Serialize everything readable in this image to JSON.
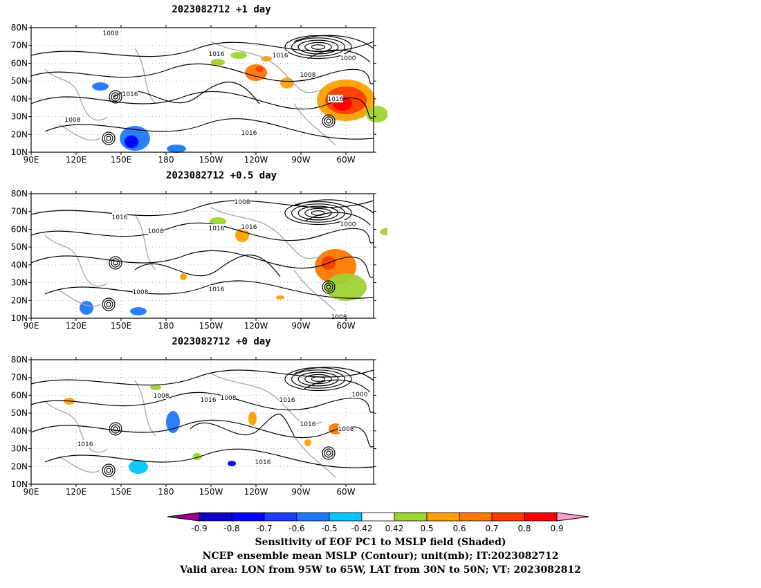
{
  "panels": [
    {
      "title": "2023082712  +1 day",
      "contour_labels": [
        "1008",
        "1016",
        "1008",
        "1016",
        "1000",
        "1016",
        "1016",
        "1008",
        "1016"
      ]
    },
    {
      "title": "2023082712  +0.5 day",
      "contour_labels": [
        "1008",
        "1016",
        "1008",
        "1016",
        "1016",
        "1000",
        "1016",
        "1016",
        "1008",
        "1008"
      ]
    },
    {
      "title": "2023082712  +0 day",
      "contour_labels": [
        "1008",
        "1016",
        "1008",
        "1016",
        "1016",
        "1000",
        "1016",
        "1016",
        "1008"
      ]
    }
  ],
  "axes": {
    "lat_ticks": [
      "80N",
      "70N",
      "60N",
      "50N",
      "40N",
      "30N",
      "20N",
      "10N"
    ],
    "lon_ticks": [
      "90E",
      "120E",
      "150E",
      "180",
      "150W",
      "120W",
      "90W",
      "60W"
    ]
  },
  "colorbar": {
    "labels": [
      "-0.9",
      "-0.8",
      "-0.7",
      "-0.6",
      "-0.5",
      "-0.42",
      "0.42",
      "0.5",
      "0.6",
      "0.7",
      "0.8",
      "0.9"
    ],
    "colors": [
      "#a0008c",
      "#0a00c8",
      "#0000ff",
      "#1e3cff",
      "#1e78ff",
      "#00c8ff",
      "#ffffff",
      "#a0d232",
      "#ffa000",
      "#ff7800",
      "#ff3c00",
      "#ff0000",
      "#ff9bc8"
    ]
  },
  "caption": {
    "line1": "Sensitivity of EOF PC1 to MSLP field (Shaded)",
    "line2": "NCEP ensemble mean MSLP (Contour); unit(mb); IT:2023082712",
    "line3": "Valid area: LON from 95W to 65W, LAT from 30N to 50N; VT: 2023082812"
  }
}
